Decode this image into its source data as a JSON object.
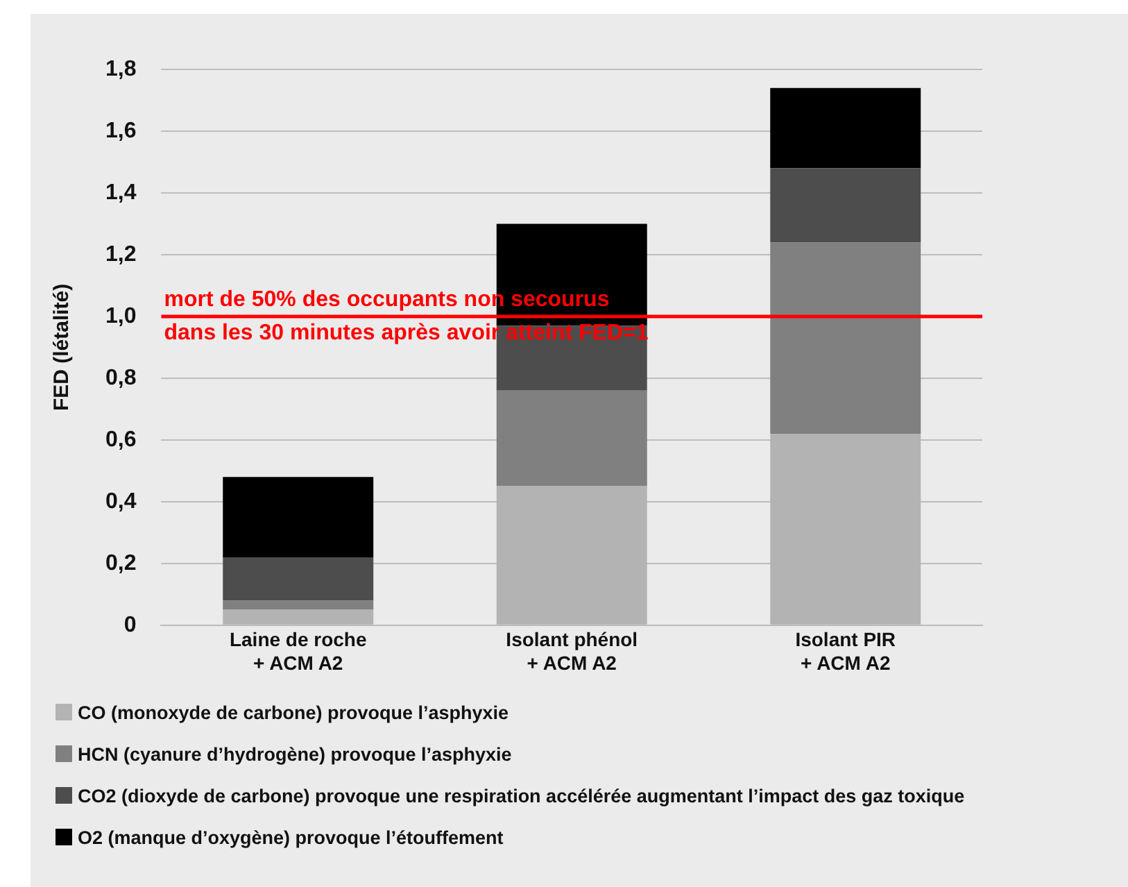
{
  "chart_data": {
    "type": "bar",
    "stacked": true,
    "ylabel": "FED (létalité)",
    "categories": [
      "Laine de roche\n+ ACM A2",
      "Isolant phénol\n+ ACM A2",
      "Isolant PIR\n+ ACM A2"
    ],
    "series": [
      {
        "name": "CO (monoxyde de carbone) provoque l’asphyxie",
        "color": "#b3b3b3",
        "values": [
          0.05,
          0.45,
          0.62
        ]
      },
      {
        "name": "HCN (cyanure d’hydrogène) provoque l’asphyxie",
        "color": "#808080",
        "values": [
          0.03,
          0.31,
          0.62
        ]
      },
      {
        "name": "CO2 (dioxyde de carbone) provoque une respiration accélérée augmentant l’impact des gaz toxique",
        "color": "#4d4d4d",
        "values": [
          0.14,
          0.21,
          0.24
        ]
      },
      {
        "name": "O2 (manque d’oxygène) provoque l’étouffement",
        "color": "#000000",
        "values": [
          0.26,
          0.33,
          0.26
        ]
      }
    ],
    "ylim": [
      0,
      1.8
    ],
    "yticks": [
      {
        "value": 0,
        "label": "0"
      },
      {
        "value": 0.2,
        "label": "0,2"
      },
      {
        "value": 0.4,
        "label": "0,4"
      },
      {
        "value": 0.6,
        "label": "0,6"
      },
      {
        "value": 0.8,
        "label": "0,8"
      },
      {
        "value": 1,
        "label": "1,0"
      },
      {
        "value": 1.2,
        "label": "1,2"
      },
      {
        "value": 1.4,
        "label": "1,4"
      },
      {
        "value": 1.6,
        "label": "1,6"
      },
      {
        "value": 1.8,
        "label": "1,8"
      }
    ],
    "grid": "y",
    "legend": "bottom",
    "ref_lines": [
      {
        "axis": "y",
        "value": 1,
        "label": "mort de 50% des occupants non secourus\ndans les 30 minutes après avoir atteint FED=1",
        "color": "#ff0000"
      }
    ]
  }
}
